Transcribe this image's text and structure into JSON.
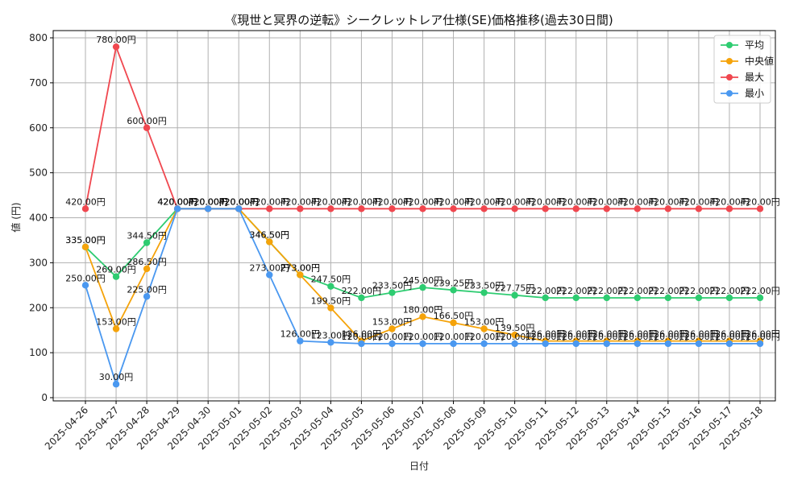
{
  "chart_data": {
    "type": "line",
    "title": "《現世と冥界の逆転》シークレットレア仕様(SE)価格推移(過去30日間)",
    "xlabel": "日付",
    "ylabel": "値 (円)",
    "ylim": [
      0,
      820
    ],
    "yticks": [
      0,
      100,
      200,
      300,
      400,
      500,
      600,
      700,
      800
    ],
    "grid": true,
    "legend_position": "top-right",
    "value_suffix": "円",
    "categories": [
      "2025-04-26",
      "2025-04-27",
      "2025-04-28",
      "2025-04-29",
      "2025-04-30",
      "2025-05-01",
      "2025-05-02",
      "2025-05-03",
      "2025-05-04",
      "2025-05-05",
      "2025-05-06",
      "2025-05-07",
      "2025-05-08",
      "2025-05-09",
      "2025-05-10",
      "2025-05-11",
      "2025-05-12",
      "2025-05-13",
      "2025-05-14",
      "2025-05-15",
      "2025-05-16",
      "2025-05-17",
      "2025-05-18"
    ],
    "series": [
      {
        "name": "平均",
        "color": "#2ecc71",
        "values": [
          335,
          269,
          344.5,
          420,
          420,
          420,
          346.5,
          273,
          247.5,
          222,
          233.5,
          245,
          239.25,
          233.5,
          227.75,
          222,
          222,
          222,
          222,
          222,
          222,
          222,
          222
        ]
      },
      {
        "name": "中央値",
        "color": "#f5a30a",
        "values": [
          335,
          153,
          286.5,
          420,
          420,
          420,
          346.5,
          273,
          199.5,
          126,
          153,
          180,
          166.5,
          153,
          139.5,
          126,
          126,
          126,
          126,
          126,
          126,
          126,
          126
        ]
      },
      {
        "name": "最大",
        "color": "#f0474f",
        "values": [
          420,
          780,
          600,
          420,
          420,
          420,
          420,
          420,
          420,
          420,
          420,
          420,
          420,
          420,
          420,
          420,
          420,
          420,
          420,
          420,
          420,
          420,
          420
        ]
      },
      {
        "name": "最小",
        "color": "#4a98f0",
        "values": [
          250,
          30,
          225,
          420,
          420,
          420,
          273,
          126,
          123,
          120,
          120,
          120,
          120,
          120,
          120,
          120,
          120,
          120,
          120,
          120,
          120,
          120,
          120
        ]
      }
    ]
  }
}
